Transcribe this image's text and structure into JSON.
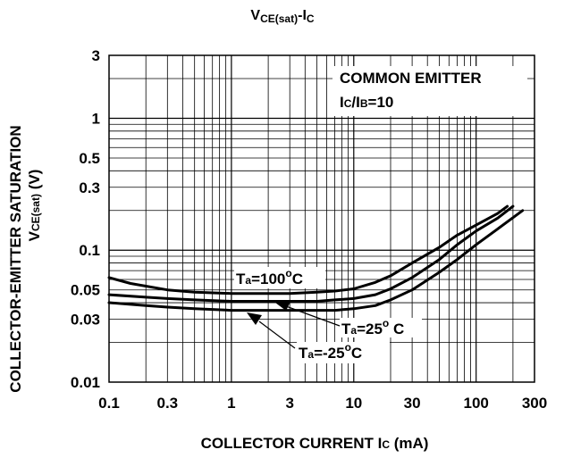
{
  "chart_data": {
    "type": "line",
    "title_main": "V",
    "title_sub": "CE(sat)",
    "title_tail": "-I",
    "title_tail_sub": "C",
    "xlabel": "COLLECTOR CURRENT I",
    "xlabel_sub": "C",
    "xlabel_tail": " (mA)",
    "ylabel_line1": "COLLECTOR-EMITTER SATURATION",
    "ylabel_line2_main": "V",
    "ylabel_line2_sub": "CE(sat)",
    "ylabel_line2_tail": " (V)",
    "x_scale": "log",
    "y_scale": "log",
    "xlim": [
      0.1,
      300
    ],
    "ylim": [
      0.01,
      3
    ],
    "x_ticks": [
      {
        "value": 0.1,
        "label": "0.1"
      },
      {
        "value": 0.3,
        "label": "0.3"
      },
      {
        "value": 1,
        "label": "1"
      },
      {
        "value": 3,
        "label": "3"
      },
      {
        "value": 10,
        "label": "10"
      },
      {
        "value": 30,
        "label": "30"
      },
      {
        "value": 100,
        "label": "100"
      },
      {
        "value": 300,
        "label": "300"
      }
    ],
    "y_ticks": [
      {
        "value": 3,
        "label": "3"
      },
      {
        "value": 1,
        "label": "1"
      },
      {
        "value": 0.5,
        "label": "0.5"
      },
      {
        "value": 0.3,
        "label": "0.3"
      },
      {
        "value": 0.1,
        "label": "0.1"
      },
      {
        "value": 0.05,
        "label": "0.05"
      },
      {
        "value": 0.03,
        "label": "0.03"
      },
      {
        "value": 0.01,
        "label": "0.01"
      }
    ],
    "grid": true,
    "annotation_box": {
      "line1": "COMMON EMITTER",
      "line2_pre": "I",
      "line2_pre_sub": "C",
      "line2_mid": "/I",
      "line2_mid_sub": "B",
      "line2_tail": "=10"
    },
    "series": [
      {
        "label_main": "T",
        "label_sub": "a",
        "label_value": "=100",
        "label_sup": "o",
        "label_unit": "C",
        "points": [
          [
            0.1,
            0.062
          ],
          [
            0.15,
            0.056
          ],
          [
            0.3,
            0.05
          ],
          [
            0.5,
            0.048
          ],
          [
            1,
            0.047
          ],
          [
            2,
            0.047
          ],
          [
            3,
            0.047
          ],
          [
            5,
            0.048
          ],
          [
            7,
            0.049
          ],
          [
            10,
            0.051
          ],
          [
            15,
            0.057
          ],
          [
            20,
            0.064
          ],
          [
            30,
            0.08
          ],
          [
            50,
            0.105
          ],
          [
            70,
            0.13
          ],
          [
            100,
            0.155
          ],
          [
            150,
            0.19
          ],
          [
            180,
            0.215
          ]
        ]
      },
      {
        "label_main": "T",
        "label_sub": "a",
        "label_value": "=25",
        "label_sup": "o",
        "label_unit": " C",
        "points": [
          [
            0.1,
            0.046
          ],
          [
            0.2,
            0.044
          ],
          [
            0.3,
            0.043
          ],
          [
            0.5,
            0.042
          ],
          [
            1,
            0.041
          ],
          [
            2,
            0.041
          ],
          [
            3,
            0.041
          ],
          [
            5,
            0.041
          ],
          [
            7,
            0.042
          ],
          [
            10,
            0.043
          ],
          [
            15,
            0.046
          ],
          [
            20,
            0.051
          ],
          [
            30,
            0.062
          ],
          [
            50,
            0.085
          ],
          [
            70,
            0.11
          ],
          [
            100,
            0.14
          ],
          [
            150,
            0.175
          ],
          [
            200,
            0.215
          ]
        ]
      },
      {
        "label_main": "T",
        "label_sub": "a",
        "label_value": "=-25",
        "label_sup": "o",
        "label_unit": "C",
        "points": [
          [
            0.1,
            0.04
          ],
          [
            0.2,
            0.038
          ],
          [
            0.3,
            0.037
          ],
          [
            0.5,
            0.036
          ],
          [
            1,
            0.035
          ],
          [
            2,
            0.035
          ],
          [
            3,
            0.035
          ],
          [
            5,
            0.035
          ],
          [
            7,
            0.035
          ],
          [
            10,
            0.036
          ],
          [
            15,
            0.038
          ],
          [
            20,
            0.042
          ],
          [
            30,
            0.05
          ],
          [
            50,
            0.068
          ],
          [
            70,
            0.085
          ],
          [
            100,
            0.11
          ],
          [
            150,
            0.145
          ],
          [
            240,
            0.2
          ]
        ]
      }
    ]
  }
}
